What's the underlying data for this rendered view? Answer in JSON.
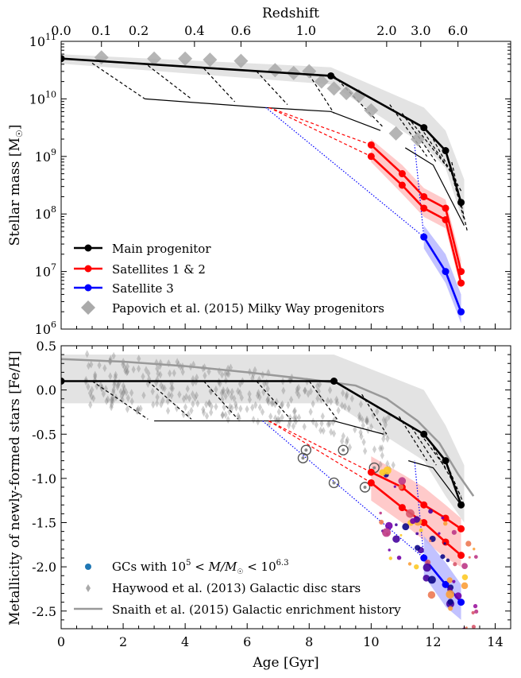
{
  "chart_data": [
    {
      "type": "line",
      "panel": "top",
      "title": "",
      "xlabel": "",
      "ylabel": "Stellar mass [M☉]",
      "xlim": [
        0,
        14.5
      ],
      "ylim_log10": [
        6,
        11
      ],
      "yscale": "log",
      "top_axis": {
        "label": "Redshift",
        "ticks": [
          {
            "label": "0.0",
            "age": 0.0
          },
          {
            "label": "0.1",
            "age": 1.3
          },
          {
            "label": "0.2",
            "age": 2.5
          },
          {
            "label": "0.4",
            "age": 4.3
          },
          {
            "label": "0.6",
            "age": 5.8
          },
          {
            "label": "1.0",
            "age": 7.9
          },
          {
            "label": "2.0",
            "age": 10.5
          },
          {
            "label": "3.0",
            "age": 11.6
          },
          {
            "label": "6.0",
            "age": 12.8
          }
        ]
      },
      "yticks": [
        {
          "label": "10",
          "exp": "6",
          "v": 6
        },
        {
          "label": "10",
          "exp": "7",
          "v": 7
        },
        {
          "label": "10",
          "exp": "8",
          "v": 8
        },
        {
          "label": "10",
          "exp": "9",
          "v": 9
        },
        {
          "label": "10",
          "exp": "10",
          "v": 10
        },
        {
          "label": "10",
          "exp": "11",
          "v": 11
        }
      ],
      "series": [
        {
          "name": "Main progenitor",
          "color": "#000000",
          "x": [
            0,
            8.7,
            11.7,
            12.4,
            12.9
          ],
          "y_log10": [
            10.7,
            10.4,
            9.5,
            9.1,
            8.2
          ]
        },
        {
          "name": "Satellites 1 & 2 (upper)",
          "color": "#ff0000",
          "x": [
            10.0,
            11.0,
            11.7,
            12.4,
            12.9
          ],
          "y_log10": [
            9.2,
            8.7,
            8.3,
            8.1,
            7.0
          ]
        },
        {
          "name": "Satellites 1 & 2 (lower)",
          "color": "#ff0000",
          "x": [
            10.0,
            11.0,
            11.7,
            12.4,
            12.9
          ],
          "y_log10": [
            9.0,
            8.5,
            8.1,
            7.9,
            6.8
          ]
        },
        {
          "name": "Satellite 3",
          "color": "#0000ff",
          "x": [
            11.7,
            12.4,
            12.9
          ],
          "y_log10": [
            7.6,
            7.0,
            6.3
          ]
        }
      ],
      "papovich_diamonds": {
        "x": [
          1.3,
          3.0,
          4.0,
          4.8,
          5.8,
          6.9,
          7.5,
          8.0,
          8.4,
          8.8,
          9.2,
          9.6,
          10.0,
          10.8,
          11.5
        ],
        "y_log10": [
          10.72,
          10.7,
          10.7,
          10.68,
          10.66,
          10.5,
          10.45,
          10.48,
          10.3,
          10.18,
          10.1,
          10.05,
          9.8,
          9.4,
          9.3
        ]
      },
      "legend": {
        "position": "lower-left",
        "entries": [
          "Main progenitor",
          "Satellites 1 & 2",
          "Satellite 3",
          "Papovich et al. (2015) Milky Way progenitors"
        ]
      }
    },
    {
      "type": "line",
      "panel": "bottom",
      "title": "",
      "xlabel": "Age [Gyr]",
      "ylabel": "Metallicity of newly-formed stars [Fe/H]",
      "xlim": [
        0,
        14.5
      ],
      "ylim": [
        -2.7,
        0.5
      ],
      "xticks": [
        "0",
        "2",
        "4",
        "6",
        "8",
        "10",
        "12",
        "14"
      ],
      "yticks": [
        "0.5",
        "0.0",
        "-0.5",
        "-1.0",
        "-1.5",
        "-2.0",
        "-2.5"
      ],
      "series": [
        {
          "name": "Main progenitor",
          "color": "#000000",
          "x": [
            0,
            8.8,
            11.7,
            12.4,
            12.9
          ],
          "y": [
            0.1,
            0.1,
            -0.5,
            -0.8,
            -1.3
          ]
        },
        {
          "name": "Satellites 1 & 2 (upper)",
          "color": "#ff0000",
          "x": [
            10.0,
            11.0,
            11.7,
            12.4,
            12.9
          ],
          "y": [
            -0.93,
            -1.1,
            -1.3,
            -1.45,
            -1.57
          ]
        },
        {
          "name": "Satellites 1 & 2 (lower)",
          "color": "#ff0000",
          "x": [
            10.0,
            11.0,
            11.7,
            12.4,
            12.9
          ],
          "y": [
            -1.05,
            -1.33,
            -1.5,
            -1.72,
            -1.87
          ]
        },
        {
          "name": "Satellite 3",
          "color": "#0000ff",
          "x": [
            11.7,
            12.4,
            12.9
          ],
          "y": [
            -1.9,
            -2.2,
            -2.4
          ]
        },
        {
          "name": "Snaith et al. (2015) Galactic enrichment history",
          "color": "#999999",
          "x": [
            0,
            2,
            4,
            6,
            8,
            9.5,
            10.5,
            11.5,
            12.2,
            12.8,
            13.3
          ],
          "y": [
            0.35,
            0.32,
            0.27,
            0.2,
            0.12,
            0.05,
            -0.1,
            -0.35,
            -0.6,
            -0.95,
            -1.2
          ]
        }
      ],
      "circled_points": {
        "x": [
          7.8,
          7.9,
          8.8,
          9.1,
          9.8,
          10.1
        ],
        "y": [
          -0.77,
          -0.68,
          -1.05,
          -0.68,
          -1.1,
          -0.88
        ]
      },
      "legend": {
        "position": "lower-left",
        "entries": [
          "GCs with 10^5 < M/M☉ < 10^6.3",
          "Haywood et al. (2013) Galactic disc stars",
          "Snaith et al. (2015) Galactic enrichment history"
        ]
      }
    }
  ],
  "labels": {
    "top_axis_title": "Redshift",
    "top_ylabel": "Stellar mass [M",
    "top_ylabel_end": "]",
    "bottom_ylabel": "Metallicity of newly-formed stars [Fe/H]",
    "xlabel": "Age [Gyr]",
    "legend_top": [
      "Main progenitor",
      "Satellites 1 & 2",
      "Satellite 3",
      "Papovich et al. (2015) Milky Way progenitors"
    ],
    "legend_gc_prefix": "GCs with 10",
    "legend_gc_exp1": "5",
    "legend_gc_mid": " < M/M",
    "legend_gc_mid2": " < 10",
    "legend_gc_exp2": "6.3",
    "legend_haywood": "Haywood et al. (2013) Galactic disc stars",
    "legend_snaith": "Snaith et al. (2015) Galactic enrichment history"
  }
}
